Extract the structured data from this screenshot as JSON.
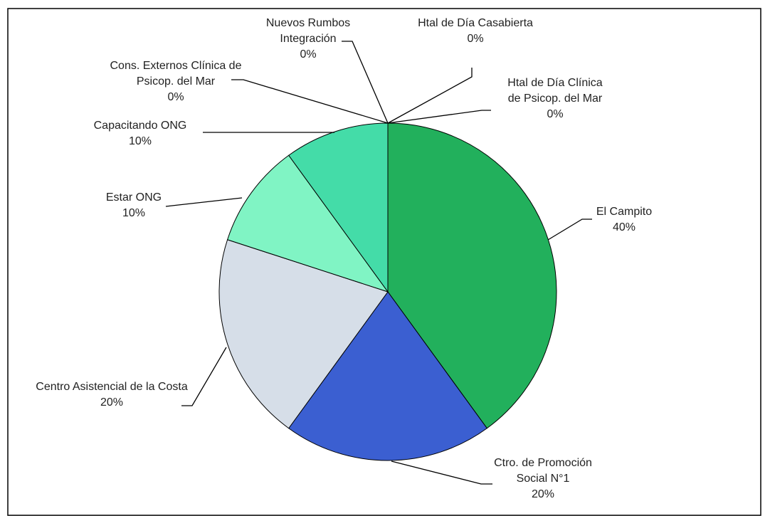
{
  "chart_data": {
    "type": "pie",
    "categories": [
      "El Campito",
      "Ctro. de Promoción Social N°1",
      "Centro Asistencial de la Costa",
      "Estar ONG",
      "Capacitando ONG",
      "Cons. Externos Clínica de Psicop. del Mar",
      "Nuevos Rumbos Integración",
      "Htal de Día Casabierta",
      "Htal de Día Clínica de Psicop. del Mar"
    ],
    "values": [
      40,
      20,
      20,
      10,
      10,
      0,
      0,
      0,
      0
    ],
    "value_labels": [
      "40%",
      "20%",
      "20%",
      "10%",
      "10%",
      "0%",
      "0%",
      "0%",
      "0%"
    ],
    "colors": [
      "#22b05c",
      "#3b5fd1",
      "#d6dee8",
      "#80f4c4",
      "#44dca8",
      "#9999ff",
      "#993366",
      "#ffffcc",
      "#ccffff"
    ]
  }
}
